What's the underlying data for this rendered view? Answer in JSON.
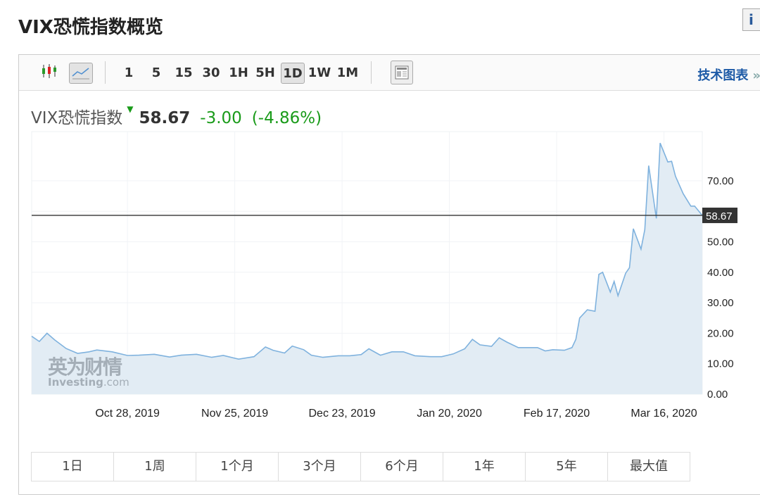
{
  "page_title": "VIX恐慌指数概览",
  "toolbar": {
    "intervals": [
      "1",
      "5",
      "15",
      "30",
      "1H",
      "5H",
      "1D",
      "1W",
      "1M"
    ],
    "active_interval": "1D",
    "tech_chart_link": "技术图表",
    "tech_chart_arrow": "»",
    "icons": [
      "candlestick-chart-icon",
      "line-chart-icon",
      "news-layout-icon",
      "info-icon"
    ]
  },
  "quote": {
    "name": "VIX恐慌指数",
    "price": "58.67",
    "change": "-3.00",
    "change_pct": "(-4.86%)",
    "direction": "down",
    "up_down_color": "#1a9b1a"
  },
  "watermark": {
    "cn": "英为财情",
    "en": "Investing",
    "en_suffix": ".com"
  },
  "ranges": [
    "1日",
    "1周",
    "1个月",
    "3个月",
    "6个月",
    "1年",
    "5年",
    "最大值"
  ],
  "chart_data": {
    "type": "area",
    "xlim": [
      "2019-10-03",
      "2020-03-26"
    ],
    "ylim": [
      0,
      85
    ],
    "x_ticks": [
      {
        "date": "2019-10-28",
        "label": "Oct 28, 2019"
      },
      {
        "date": "2019-11-25",
        "label": "Nov 25, 2019"
      },
      {
        "date": "2019-12-23",
        "label": "Dec 23, 2019"
      },
      {
        "date": "2020-01-20",
        "label": "Jan 20, 2020"
      },
      {
        "date": "2020-02-17",
        "label": "Feb 17, 2020"
      },
      {
        "date": "2020-03-16",
        "label": "Mar 16, 2020"
      }
    ],
    "y_ticks": [
      "0.00",
      "10.00",
      "20.00",
      "30.00",
      "40.00",
      "50.00",
      "60.00",
      "70.00"
    ],
    "y_tick_values": [
      0,
      10,
      20,
      30,
      40,
      50,
      60,
      70
    ],
    "current_value": 58.67,
    "current_label": "58.67",
    "line_color": "#7fb2de",
    "fill_color": "#e2ecf4",
    "grid": true,
    "points": [
      [
        "2019-10-03",
        19.0
      ],
      [
        "2019-10-05",
        17.3
      ],
      [
        "2019-10-07",
        20.0
      ],
      [
        "2019-10-09",
        17.8
      ],
      [
        "2019-10-12",
        15.0
      ],
      [
        "2019-10-15",
        13.4
      ],
      [
        "2019-10-18",
        13.9
      ],
      [
        "2019-10-20",
        14.5
      ],
      [
        "2019-10-24",
        13.9
      ],
      [
        "2019-10-28",
        12.7
      ],
      [
        "2019-10-31",
        12.8
      ],
      [
        "2019-11-04",
        13.1
      ],
      [
        "2019-11-08",
        12.2
      ],
      [
        "2019-11-11",
        12.8
      ],
      [
        "2019-11-15",
        13.1
      ],
      [
        "2019-11-19",
        12.1
      ],
      [
        "2019-11-22",
        12.7
      ],
      [
        "2019-11-26",
        11.5
      ],
      [
        "2019-11-30",
        12.3
      ],
      [
        "2019-12-03",
        15.5
      ],
      [
        "2019-12-05",
        14.4
      ],
      [
        "2019-12-08",
        13.5
      ],
      [
        "2019-12-10",
        15.8
      ],
      [
        "2019-12-13",
        14.6
      ],
      [
        "2019-12-15",
        12.8
      ],
      [
        "2019-12-18",
        12.1
      ],
      [
        "2019-12-22",
        12.6
      ],
      [
        "2019-12-25",
        12.6
      ],
      [
        "2019-12-28",
        13.0
      ],
      [
        "2019-12-30",
        14.9
      ],
      [
        "2020-01-02",
        12.8
      ],
      [
        "2020-01-05",
        13.9
      ],
      [
        "2020-01-08",
        13.9
      ],
      [
        "2020-01-11",
        12.6
      ],
      [
        "2020-01-15",
        12.3
      ],
      [
        "2020-01-18",
        12.3
      ],
      [
        "2020-01-21",
        13.2
      ],
      [
        "2020-01-24",
        14.9
      ],
      [
        "2020-01-26",
        18.0
      ],
      [
        "2020-01-28",
        16.2
      ],
      [
        "2020-01-31",
        15.7
      ],
      [
        "2020-02-02",
        18.5
      ],
      [
        "2020-02-04",
        17.1
      ],
      [
        "2020-02-07",
        15.3
      ],
      [
        "2020-02-10",
        15.3
      ],
      [
        "2020-02-12",
        15.3
      ],
      [
        "2020-02-14",
        14.2
      ],
      [
        "2020-02-16",
        14.6
      ],
      [
        "2020-02-19",
        14.4
      ],
      [
        "2020-02-21",
        15.3
      ],
      [
        "2020-02-22",
        18.0
      ],
      [
        "2020-02-23",
        25.0
      ],
      [
        "2020-02-25",
        27.7
      ],
      [
        "2020-02-27",
        27.2
      ],
      [
        "2020-02-28",
        39.3
      ],
      [
        "2020-02-29",
        40.0
      ],
      [
        "2020-03-02",
        33.5
      ],
      [
        "2020-03-03",
        37.0
      ],
      [
        "2020-03-04",
        32.3
      ],
      [
        "2020-03-06",
        39.7
      ],
      [
        "2020-03-07",
        41.5
      ],
      [
        "2020-03-08",
        54.3
      ],
      [
        "2020-03-10",
        47.6
      ],
      [
        "2020-03-11",
        54.0
      ],
      [
        "2020-03-12",
        75.0
      ],
      [
        "2020-03-14",
        57.7
      ],
      [
        "2020-03-15",
        82.4
      ],
      [
        "2020-03-17",
        76.2
      ],
      [
        "2020-03-18",
        76.4
      ],
      [
        "2020-03-19",
        71.5
      ],
      [
        "2020-03-21",
        65.8
      ],
      [
        "2020-03-23",
        61.7
      ],
      [
        "2020-03-24",
        61.7
      ],
      [
        "2020-03-26",
        58.67
      ]
    ]
  }
}
